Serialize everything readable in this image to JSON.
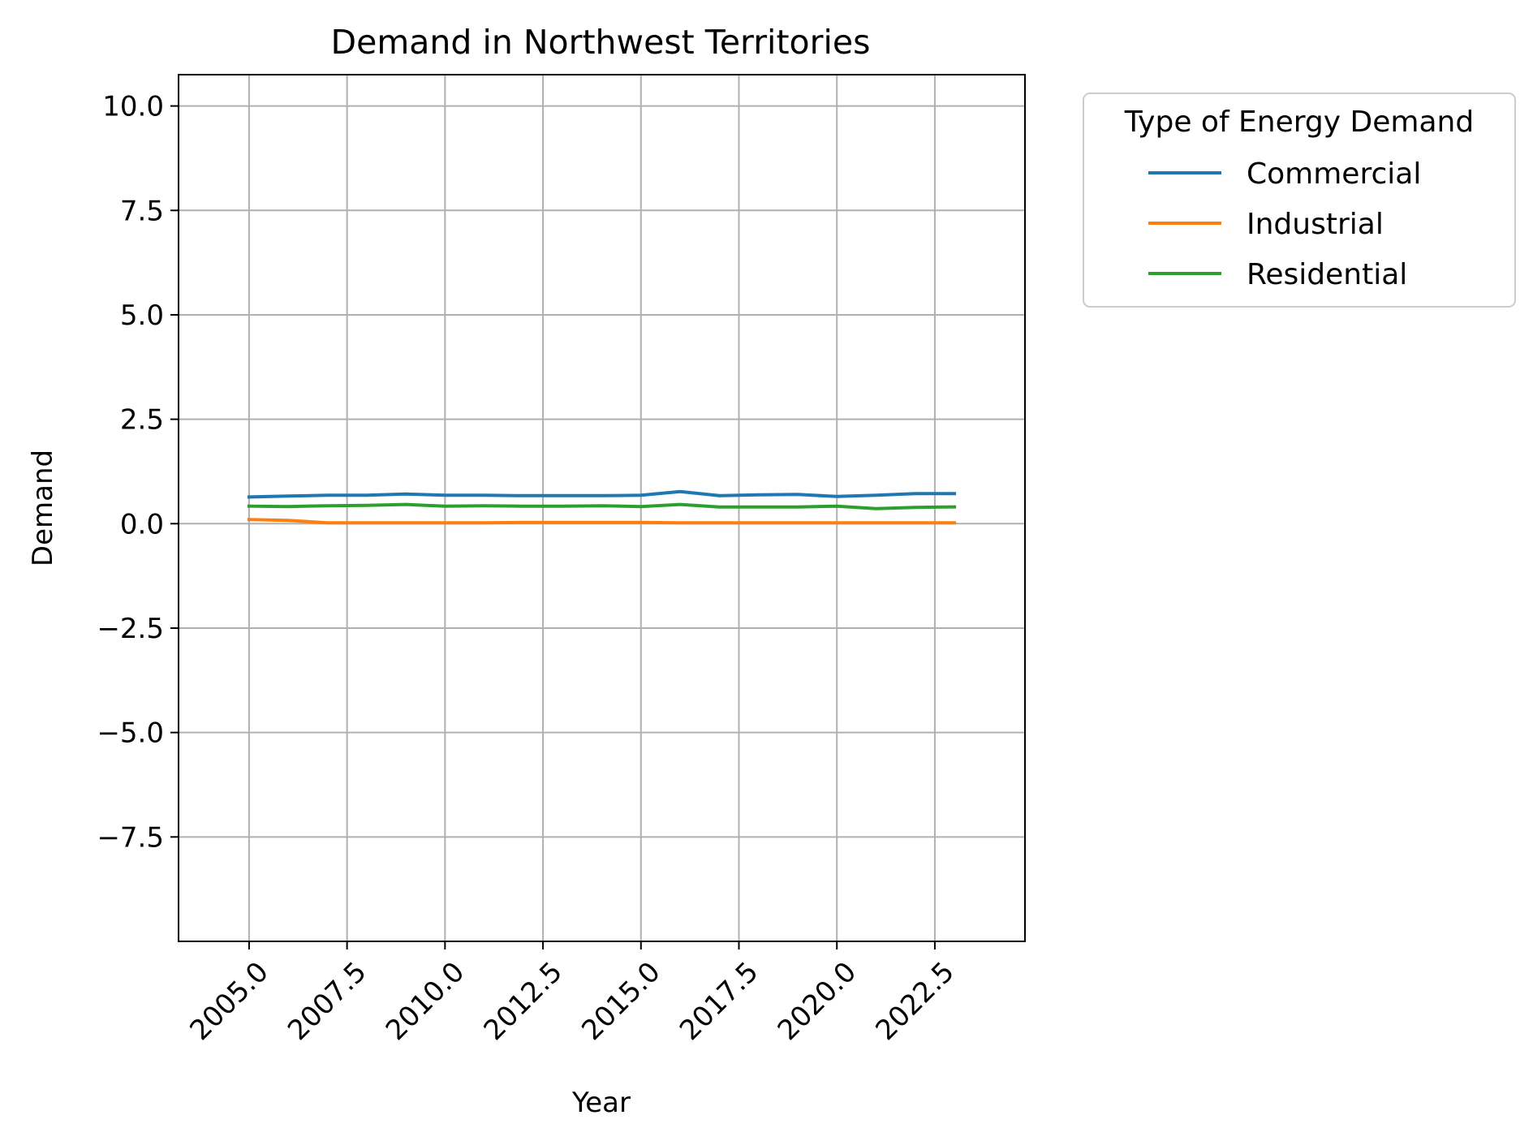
{
  "chart_data": {
    "type": "line",
    "title": "Demand in Northwest Territories",
    "xlabel": "Year",
    "ylabel": "Demand",
    "xlim": [
      2003.2,
      2024.8
    ],
    "ylim": [
      -10.0,
      10.75
    ],
    "x_ticks": [
      2005.0,
      2007.5,
      2010.0,
      2012.5,
      2015.0,
      2017.5,
      2020.0,
      2022.5
    ],
    "x_tick_labels": [
      "2005.0",
      "2007.5",
      "2010.0",
      "2012.5",
      "2015.0",
      "2017.5",
      "2020.0",
      "2022.5"
    ],
    "y_ticks": [
      -7.5,
      -5.0,
      -2.5,
      0.0,
      2.5,
      5.0,
      7.5,
      10.0
    ],
    "y_tick_labels": [
      "−7.5",
      "−5.0",
      "−2.5",
      "0.0",
      "2.5",
      "5.0",
      "7.5",
      "10.0"
    ],
    "grid": true,
    "legend": {
      "title": "Type of Energy Demand",
      "placement": "outside-top-right"
    },
    "x": [
      2005,
      2006,
      2007,
      2008,
      2009,
      2010,
      2011,
      2012,
      2013,
      2014,
      2015,
      2016,
      2017,
      2018,
      2019,
      2020,
      2021,
      2022,
      2023
    ],
    "series": [
      {
        "name": "Commercial",
        "color": "#1f77b4",
        "values": [
          0.64,
          0.66,
          0.68,
          0.68,
          0.71,
          0.68,
          0.68,
          0.67,
          0.67,
          0.67,
          0.68,
          0.77,
          0.67,
          0.69,
          0.7,
          0.65,
          0.68,
          0.72,
          0.72
        ]
      },
      {
        "name": "Industrial",
        "color": "#ff7f0e",
        "values": [
          0.1,
          0.08,
          0.02,
          0.02,
          0.02,
          0.02,
          0.02,
          0.03,
          0.03,
          0.03,
          0.03,
          0.02,
          0.02,
          0.02,
          0.02,
          0.02,
          0.02,
          0.02,
          0.02
        ]
      },
      {
        "name": "Residential",
        "color": "#2ca02c",
        "values": [
          0.42,
          0.41,
          0.43,
          0.44,
          0.46,
          0.42,
          0.43,
          0.42,
          0.42,
          0.43,
          0.41,
          0.46,
          0.4,
          0.4,
          0.4,
          0.42,
          0.36,
          0.39,
          0.4
        ]
      }
    ]
  }
}
